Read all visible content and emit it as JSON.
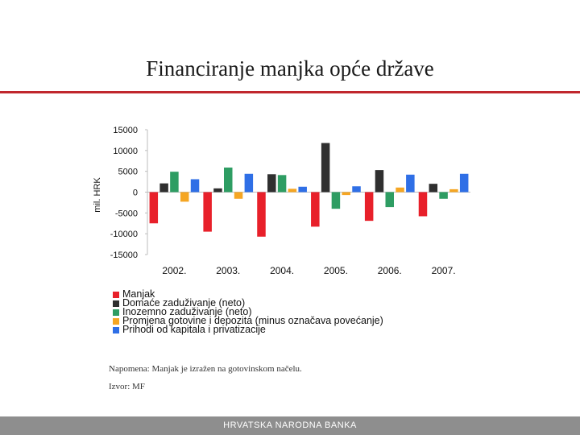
{
  "page": {
    "title": "Financiranje manjka opće države",
    "note": "Napomena: Manjak je izražen na gotovinskom načelu.",
    "source": "Izvor: MF",
    "footer": "HRVATSKA NARODNA BANKA"
  },
  "chart_data": {
    "type": "bar",
    "title": "",
    "xlabel": "",
    "ylabel": "mil. HRK",
    "ylim": [
      -15000,
      15000
    ],
    "yticks": [
      15000,
      10000,
      5000,
      0,
      -5000,
      -10000,
      -15000
    ],
    "ytick_labels": [
      "15000",
      "10000",
      "5000",
      "0",
      "-5000",
      "-10000",
      "-15000"
    ],
    "grid": false,
    "legend_position": "bottom",
    "categories": [
      "2002.",
      "2003.",
      "2004.",
      "2005.",
      "2006.",
      "2007."
    ],
    "series": [
      {
        "name": "Manjak",
        "color": "#e8202a",
        "values": [
          -7500,
          -9500,
          -10700,
          -8300,
          -6900,
          -5800
        ]
      },
      {
        "name": "Domaće zaduživanje (neto)",
        "color": "#2f2f2f",
        "values": [
          2100,
          900,
          4300,
          11800,
          5300,
          2000
        ]
      },
      {
        "name": "Inozemno zaduživanje (neto)",
        "color": "#2e9d63",
        "values": [
          4900,
          5900,
          4100,
          -4000,
          -3600,
          -1600
        ]
      },
      {
        "name": "Promjena gotovine i depozita (minus označava povećanje)",
        "color": "#f5a623",
        "values": [
          -2300,
          -1600,
          800,
          -700,
          1100,
          700
        ]
      },
      {
        "name": "Prihodi od kapitala i privatizacije",
        "color": "#2f6fe6",
        "values": [
          3100,
          4400,
          1300,
          1400,
          4200,
          4400
        ]
      }
    ]
  }
}
